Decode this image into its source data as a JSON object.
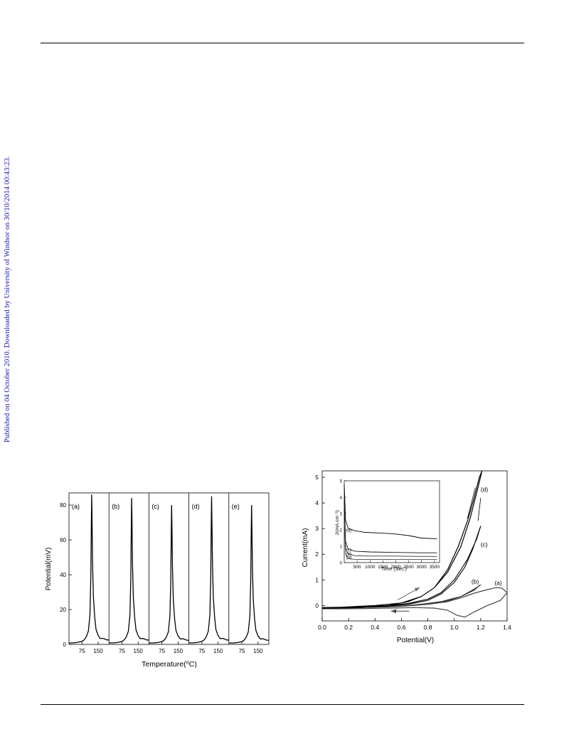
{
  "page": {
    "side_note": "Published on 04 October 2010. Downloaded by University of Windsor on 30/10/2014 00:43:23."
  },
  "figure_left": {
    "chart_data": {
      "type": "line",
      "xlabel": "Temperature(⁰C)",
      "ylabel": "Potential(mV)",
      "ylim": [
        0,
        87
      ],
      "yticks": [
        0,
        20,
        40,
        60,
        80
      ],
      "panel_xticks": [
        75,
        150
      ],
      "panel_xlim": [
        15,
        200
      ],
      "series": [
        {
          "name": "(a)",
          "peak_x": 120,
          "peak_y": 86
        },
        {
          "name": "(b)",
          "peak_x": 120,
          "peak_y": 84
        },
        {
          "name": "(c)",
          "peak_x": 120,
          "peak_y": 80
        },
        {
          "name": "(d)",
          "peak_x": 120,
          "peak_y": 85
        },
        {
          "name": "(e)",
          "peak_x": 120,
          "peak_y": 80
        }
      ],
      "x": [
        15,
        40,
        60,
        75,
        85,
        95,
        105,
        112,
        116,
        118,
        120,
        122,
        124,
        128,
        134,
        140,
        150,
        160,
        175,
        190,
        200
      ],
      "shape": [
        0.01,
        0.01,
        0.015,
        0.02,
        0.03,
        0.05,
        0.09,
        0.2,
        0.45,
        0.75,
        1.0,
        0.8,
        0.55,
        0.32,
        0.18,
        0.1,
        0.06,
        0.04,
        0.04,
        0.03,
        0.03
      ]
    }
  },
  "figure_right": {
    "chart_data": {
      "type": "line",
      "xlabel": "Potential(V)",
      "ylabel": "Current(mA)",
      "xlim": [
        0.0,
        1.4
      ],
      "ylim": [
        -0.6,
        5.25
      ],
      "xticks": [
        "0.0",
        "0.2",
        "0.4",
        "0.6",
        "0.8",
        "1.0",
        "1.2",
        "1.4"
      ],
      "yticks": [
        "0",
        "1",
        "2",
        "3",
        "4",
        "5"
      ],
      "series": [
        {
          "name": "(a)",
          "x": [
            0.0,
            0.2,
            0.4,
            0.6,
            0.8,
            0.95,
            1.05,
            1.15,
            1.25,
            1.32,
            1.36,
            1.4,
            1.35,
            1.25,
            1.15,
            1.08,
            1.02,
            0.95,
            0.85,
            0.7,
            0.5,
            0.3,
            0.1,
            0.0
          ],
          "y": [
            -0.1,
            -0.08,
            -0.06,
            -0.03,
            0.05,
            0.15,
            0.3,
            0.48,
            0.62,
            0.7,
            0.68,
            0.5,
            0.2,
            0.0,
            -0.25,
            -0.45,
            -0.38,
            -0.18,
            -0.1,
            -0.08,
            -0.1,
            -0.12,
            -0.13,
            -0.12
          ]
        },
        {
          "name": "(b)",
          "x": [
            0.0,
            0.3,
            0.5,
            0.65,
            0.8,
            0.95,
            1.05,
            1.12,
            1.17,
            1.2,
            1.15,
            1.05,
            0.9,
            0.75,
            0.6,
            0.4,
            0.2,
            0.0
          ],
          "y": [
            -0.1,
            -0.08,
            -0.05,
            0.0,
            0.08,
            0.18,
            0.35,
            0.55,
            0.7,
            0.82,
            0.6,
            0.35,
            0.15,
            0.05,
            -0.02,
            -0.06,
            -0.1,
            -0.12
          ]
        },
        {
          "name": "(c)",
          "x": [
            0.0,
            0.3,
            0.5,
            0.65,
            0.8,
            0.9,
            1.0,
            1.08,
            1.14,
            1.18,
            1.2,
            1.17,
            1.1,
            1.0,
            0.9,
            0.8,
            0.65,
            0.5,
            0.3,
            0.0
          ],
          "y": [
            -0.1,
            -0.08,
            -0.03,
            0.05,
            0.2,
            0.45,
            0.9,
            1.5,
            2.2,
            2.8,
            3.1,
            2.6,
            1.8,
            1.0,
            0.5,
            0.25,
            0.08,
            0.0,
            -0.06,
            -0.12
          ]
        },
        {
          "name": "(d)",
          "x": [
            0.0,
            0.3,
            0.5,
            0.65,
            0.75,
            0.85,
            0.95,
            1.03,
            1.1,
            1.15,
            1.19,
            1.21,
            1.18,
            1.12,
            1.05,
            0.95,
            0.85,
            0.75,
            0.6,
            0.4,
            0.2,
            0.0
          ],
          "y": [
            -0.08,
            -0.05,
            0.0,
            0.15,
            0.35,
            0.7,
            1.4,
            2.3,
            3.3,
            4.2,
            5.0,
            5.25,
            4.6,
            3.4,
            2.3,
            1.3,
            0.7,
            0.35,
            0.1,
            0.0,
            -0.05,
            -0.1
          ]
        }
      ],
      "inset": {
        "xlabel": "Time (Sec.)",
        "ylabel": "J/(mA.cm⁻²)",
        "xlim": [
          0,
          3700
        ],
        "ylim": [
          0,
          5
        ],
        "xticks": [
          "500",
          "1000",
          "1500",
          "2000",
          "2500",
          "3000",
          "3500"
        ],
        "yticks": [
          "0",
          "1",
          "2",
          "3",
          "4",
          "5"
        ],
        "series": [
          {
            "name": "(a)",
            "x": [
              0,
              50,
              150,
              400,
              1000,
              2000,
              3000,
              3600
            ],
            "y": [
              3.0,
              0.5,
              0.25,
              0.2,
              0.2,
              0.2,
              0.2,
              0.2
            ]
          },
          {
            "name": "(b)",
            "x": [
              0,
              50,
              150,
              400,
              1000,
              2000,
              3000,
              3600
            ],
            "y": [
              3.6,
              0.9,
              0.55,
              0.42,
              0.4,
              0.4,
              0.38,
              0.38
            ]
          },
          {
            "name": "(c)",
            "x": [
              0,
              50,
              150,
              400,
              1000,
              2000,
              3000,
              3600
            ],
            "y": [
              4.0,
              1.3,
              0.85,
              0.7,
              0.65,
              0.62,
              0.6,
              0.6
            ]
          },
          {
            "name": "(d)",
            "x": [
              0,
              50,
              150,
              400,
              800,
              1500,
              2000,
              2500,
              3000,
              3600
            ],
            "y": [
              4.8,
              2.6,
              2.1,
              1.95,
              1.85,
              1.8,
              1.75,
              1.65,
              1.5,
              1.45
            ]
          }
        ]
      }
    }
  }
}
